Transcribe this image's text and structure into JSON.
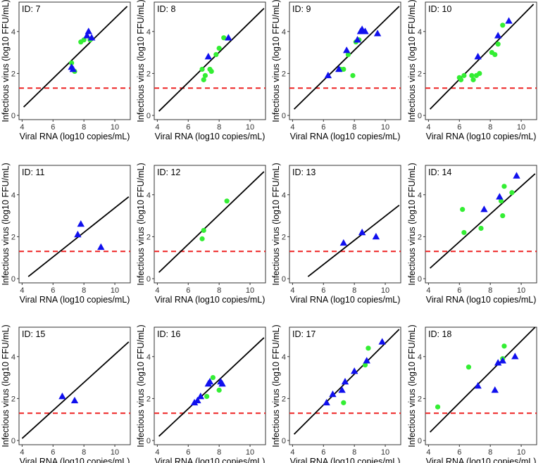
{
  "chart_data": {
    "type": "scatter",
    "xlabel": "Viral RNA (log10 copies/mL)",
    "ylabel": "Infectious virus (log10 FFU/mL)",
    "xlim": [
      3.8,
      11.0
    ],
    "ylim": [
      -0.2,
      5.4
    ],
    "x_ticks": [
      4,
      6,
      8,
      10
    ],
    "y_ticks": [
      0,
      2,
      4
    ],
    "threshold": 1.3,
    "colors": {
      "triangle": "#1010ee",
      "circle": "#33ee33",
      "threshold": "#ee2222",
      "line": "#000000"
    },
    "panels": [
      {
        "id_label": "ID: 7",
        "line": [
          [
            4.1,
            0.4
          ],
          [
            10.8,
            5.2
          ]
        ],
        "triangles": [
          [
            7.2,
            2.3
          ],
          [
            7.3,
            2.2
          ],
          [
            8.2,
            3.8
          ],
          [
            8.3,
            4.0
          ],
          [
            8.5,
            3.7
          ]
        ],
        "circles": [
          [
            7.2,
            2.5
          ],
          [
            7.4,
            2.1
          ],
          [
            7.8,
            3.5
          ],
          [
            8.0,
            3.6
          ],
          [
            8.4,
            3.6
          ]
        ]
      },
      {
        "id_label": "ID: 8",
        "line": [
          [
            4.1,
            0.2
          ],
          [
            10.9,
            5.1
          ]
        ],
        "triangles": [
          [
            7.3,
            2.8
          ],
          [
            8.6,
            3.7
          ]
        ],
        "circles": [
          [
            6.9,
            2.2
          ],
          [
            7.0,
            1.7
          ],
          [
            7.1,
            1.9
          ],
          [
            7.4,
            2.2
          ],
          [
            7.5,
            2.1
          ],
          [
            7.8,
            2.9
          ],
          [
            8.0,
            3.2
          ],
          [
            8.3,
            3.7
          ]
        ]
      },
      {
        "id_label": "ID: 9",
        "line": [
          [
            4.1,
            0.3
          ],
          [
            10.9,
            5.2
          ]
        ],
        "triangles": [
          [
            6.3,
            1.9
          ],
          [
            7.0,
            2.2
          ],
          [
            7.5,
            3.1
          ],
          [
            8.2,
            3.6
          ],
          [
            8.4,
            4.0
          ],
          [
            8.5,
            4.1
          ],
          [
            8.7,
            4.0
          ],
          [
            9.5,
            3.9
          ]
        ],
        "circles": [
          [
            7.1,
            2.2
          ],
          [
            7.3,
            2.2
          ],
          [
            7.6,
            2.9
          ],
          [
            7.9,
            1.9
          ],
          [
            8.1,
            3.5
          ],
          [
            8.3,
            3.6
          ]
        ]
      },
      {
        "id_label": "ID: 10",
        "line": [
          [
            4.1,
            0.3
          ],
          [
            10.8,
            5.3
          ]
        ],
        "triangles": [
          [
            7.2,
            2.8
          ],
          [
            8.5,
            3.8
          ],
          [
            9.2,
            4.5
          ]
        ],
        "circles": [
          [
            6.0,
            1.8
          ],
          [
            6.1,
            1.7
          ],
          [
            6.3,
            1.9
          ],
          [
            6.8,
            1.9
          ],
          [
            6.9,
            1.7
          ],
          [
            7.1,
            1.9
          ],
          [
            7.3,
            2.0
          ],
          [
            8.1,
            3.0
          ],
          [
            8.3,
            2.9
          ],
          [
            8.5,
            3.4
          ],
          [
            8.8,
            4.3
          ]
        ]
      },
      {
        "id_label": "ID: 11",
        "line": [
          [
            4.4,
            0.1
          ],
          [
            10.9,
            3.9
          ]
        ],
        "triangles": [
          [
            7.6,
            2.1
          ],
          [
            7.8,
            2.6
          ],
          [
            9.1,
            1.5
          ]
        ],
        "circles": []
      },
      {
        "id_label": "ID: 12",
        "line": [
          [
            4.1,
            0.3
          ],
          [
            10.9,
            5.1
          ]
        ],
        "triangles": [],
        "circles": [
          [
            6.9,
            1.9
          ],
          [
            7.0,
            2.3
          ],
          [
            8.5,
            3.7
          ]
        ]
      },
      {
        "id_label": "ID: 13",
        "line": [
          [
            5.0,
            0.1
          ],
          [
            10.9,
            3.5
          ]
        ],
        "triangles": [
          [
            7.3,
            1.7
          ],
          [
            8.5,
            2.2
          ],
          [
            9.4,
            2.0
          ]
        ],
        "circles": []
      },
      {
        "id_label": "ID: 14",
        "line": [
          [
            4.1,
            0.5
          ],
          [
            10.9,
            5.0
          ]
        ],
        "triangles": [
          [
            7.6,
            3.3
          ],
          [
            8.6,
            3.9
          ],
          [
            9.7,
            4.9
          ]
        ],
        "circles": [
          [
            6.2,
            3.3
          ],
          [
            6.3,
            2.2
          ],
          [
            7.4,
            2.4
          ],
          [
            8.7,
            3.7
          ],
          [
            8.8,
            3.0
          ],
          [
            8.9,
            4.4
          ],
          [
            9.4,
            4.1
          ]
        ]
      },
      {
        "id_label": "ID: 15",
        "line": [
          [
            4.0,
            0.1
          ],
          [
            10.9,
            4.7
          ]
        ],
        "triangles": [
          [
            6.6,
            2.1
          ],
          [
            7.4,
            1.9
          ]
        ],
        "circles": []
      },
      {
        "id_label": "ID: 16",
        "line": [
          [
            4.1,
            0.2
          ],
          [
            10.9,
            4.9
          ]
        ],
        "triangles": [
          [
            6.4,
            1.8
          ],
          [
            6.6,
            1.9
          ],
          [
            6.8,
            2.1
          ],
          [
            7.3,
            2.7
          ],
          [
            7.4,
            2.8
          ],
          [
            8.1,
            2.8
          ],
          [
            8.2,
            2.7
          ]
        ],
        "circles": [
          [
            7.2,
            2.1
          ],
          [
            7.6,
            3.0
          ],
          [
            8.0,
            2.4
          ]
        ]
      },
      {
        "id_label": "ID: 17",
        "line": [
          [
            4.1,
            0.3
          ],
          [
            10.9,
            5.3
          ]
        ],
        "triangles": [
          [
            6.2,
            1.8
          ],
          [
            6.6,
            2.2
          ],
          [
            7.2,
            2.4
          ],
          [
            7.4,
            2.8
          ],
          [
            8.0,
            3.3
          ],
          [
            8.8,
            3.8
          ],
          [
            9.8,
            4.7
          ]
        ],
        "circles": [
          [
            7.3,
            1.8
          ],
          [
            8.7,
            3.6
          ],
          [
            8.9,
            4.4
          ]
        ]
      },
      {
        "id_label": "ID: 18",
        "line": [
          [
            4.1,
            0.4
          ],
          [
            10.9,
            5.4
          ]
        ],
        "triangles": [
          [
            7.2,
            2.6
          ],
          [
            8.3,
            2.4
          ],
          [
            8.5,
            3.7
          ],
          [
            8.8,
            3.8
          ],
          [
            9.6,
            4.0
          ]
        ],
        "circles": [
          [
            4.6,
            1.6
          ],
          [
            6.6,
            3.5
          ],
          [
            8.8,
            3.9
          ],
          [
            8.9,
            4.5
          ]
        ]
      }
    ]
  }
}
